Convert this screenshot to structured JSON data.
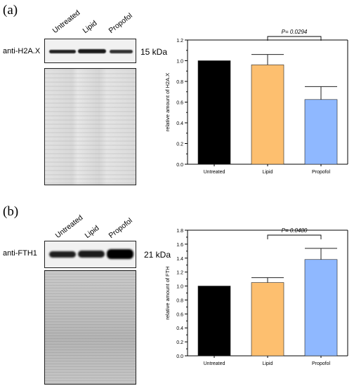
{
  "panel_a": {
    "label": "(a)",
    "lanes": [
      "Untreated",
      "Lipid",
      "Propofol"
    ],
    "antibody": "anti-H2A.X",
    "kda": "15 kDa"
  },
  "panel_b": {
    "label": "(b)",
    "lanes": [
      "Untreated",
      "Lipid",
      "Propofol"
    ],
    "antibody": "anti-FTH1",
    "kda": "21 kDa"
  },
  "chart_data": [
    {
      "type": "bar",
      "categories": [
        "Untreated",
        "Lipid",
        "Propofol"
      ],
      "values": [
        1.0,
        0.96,
        0.625
      ],
      "errors": [
        0,
        0.1,
        0.125
      ],
      "colors": [
        "#000000",
        "#fdbf6f",
        "#8fb8ff"
      ],
      "ylabel": "relative amount of H2A.X",
      "ylim": [
        0,
        1.2
      ],
      "yticks": [
        "0.0",
        "0.2",
        "0.4",
        "0.6",
        "0.8",
        "1.0",
        "1.2"
      ],
      "annotation": {
        "text": "P= 0.0294",
        "from": "Lipid",
        "to": "Propofol"
      }
    },
    {
      "type": "bar",
      "categories": [
        "Untreated",
        "Lipid",
        "Propofol"
      ],
      "values": [
        1.0,
        1.05,
        1.38
      ],
      "errors": [
        0,
        0.07,
        0.16
      ],
      "colors": [
        "#000000",
        "#fdbf6f",
        "#8fb8ff"
      ],
      "ylabel": "relative amount of FTH",
      "ylim": [
        0,
        1.8
      ],
      "yticks": [
        "0.0",
        "0.2",
        "0.4",
        "0.6",
        "0.8",
        "1.0",
        "1.2",
        "1.4",
        "1.6",
        "1.8"
      ],
      "annotation": {
        "text": "P= 0.0480",
        "from": "Lipid",
        "to": "Propofol"
      }
    }
  ]
}
